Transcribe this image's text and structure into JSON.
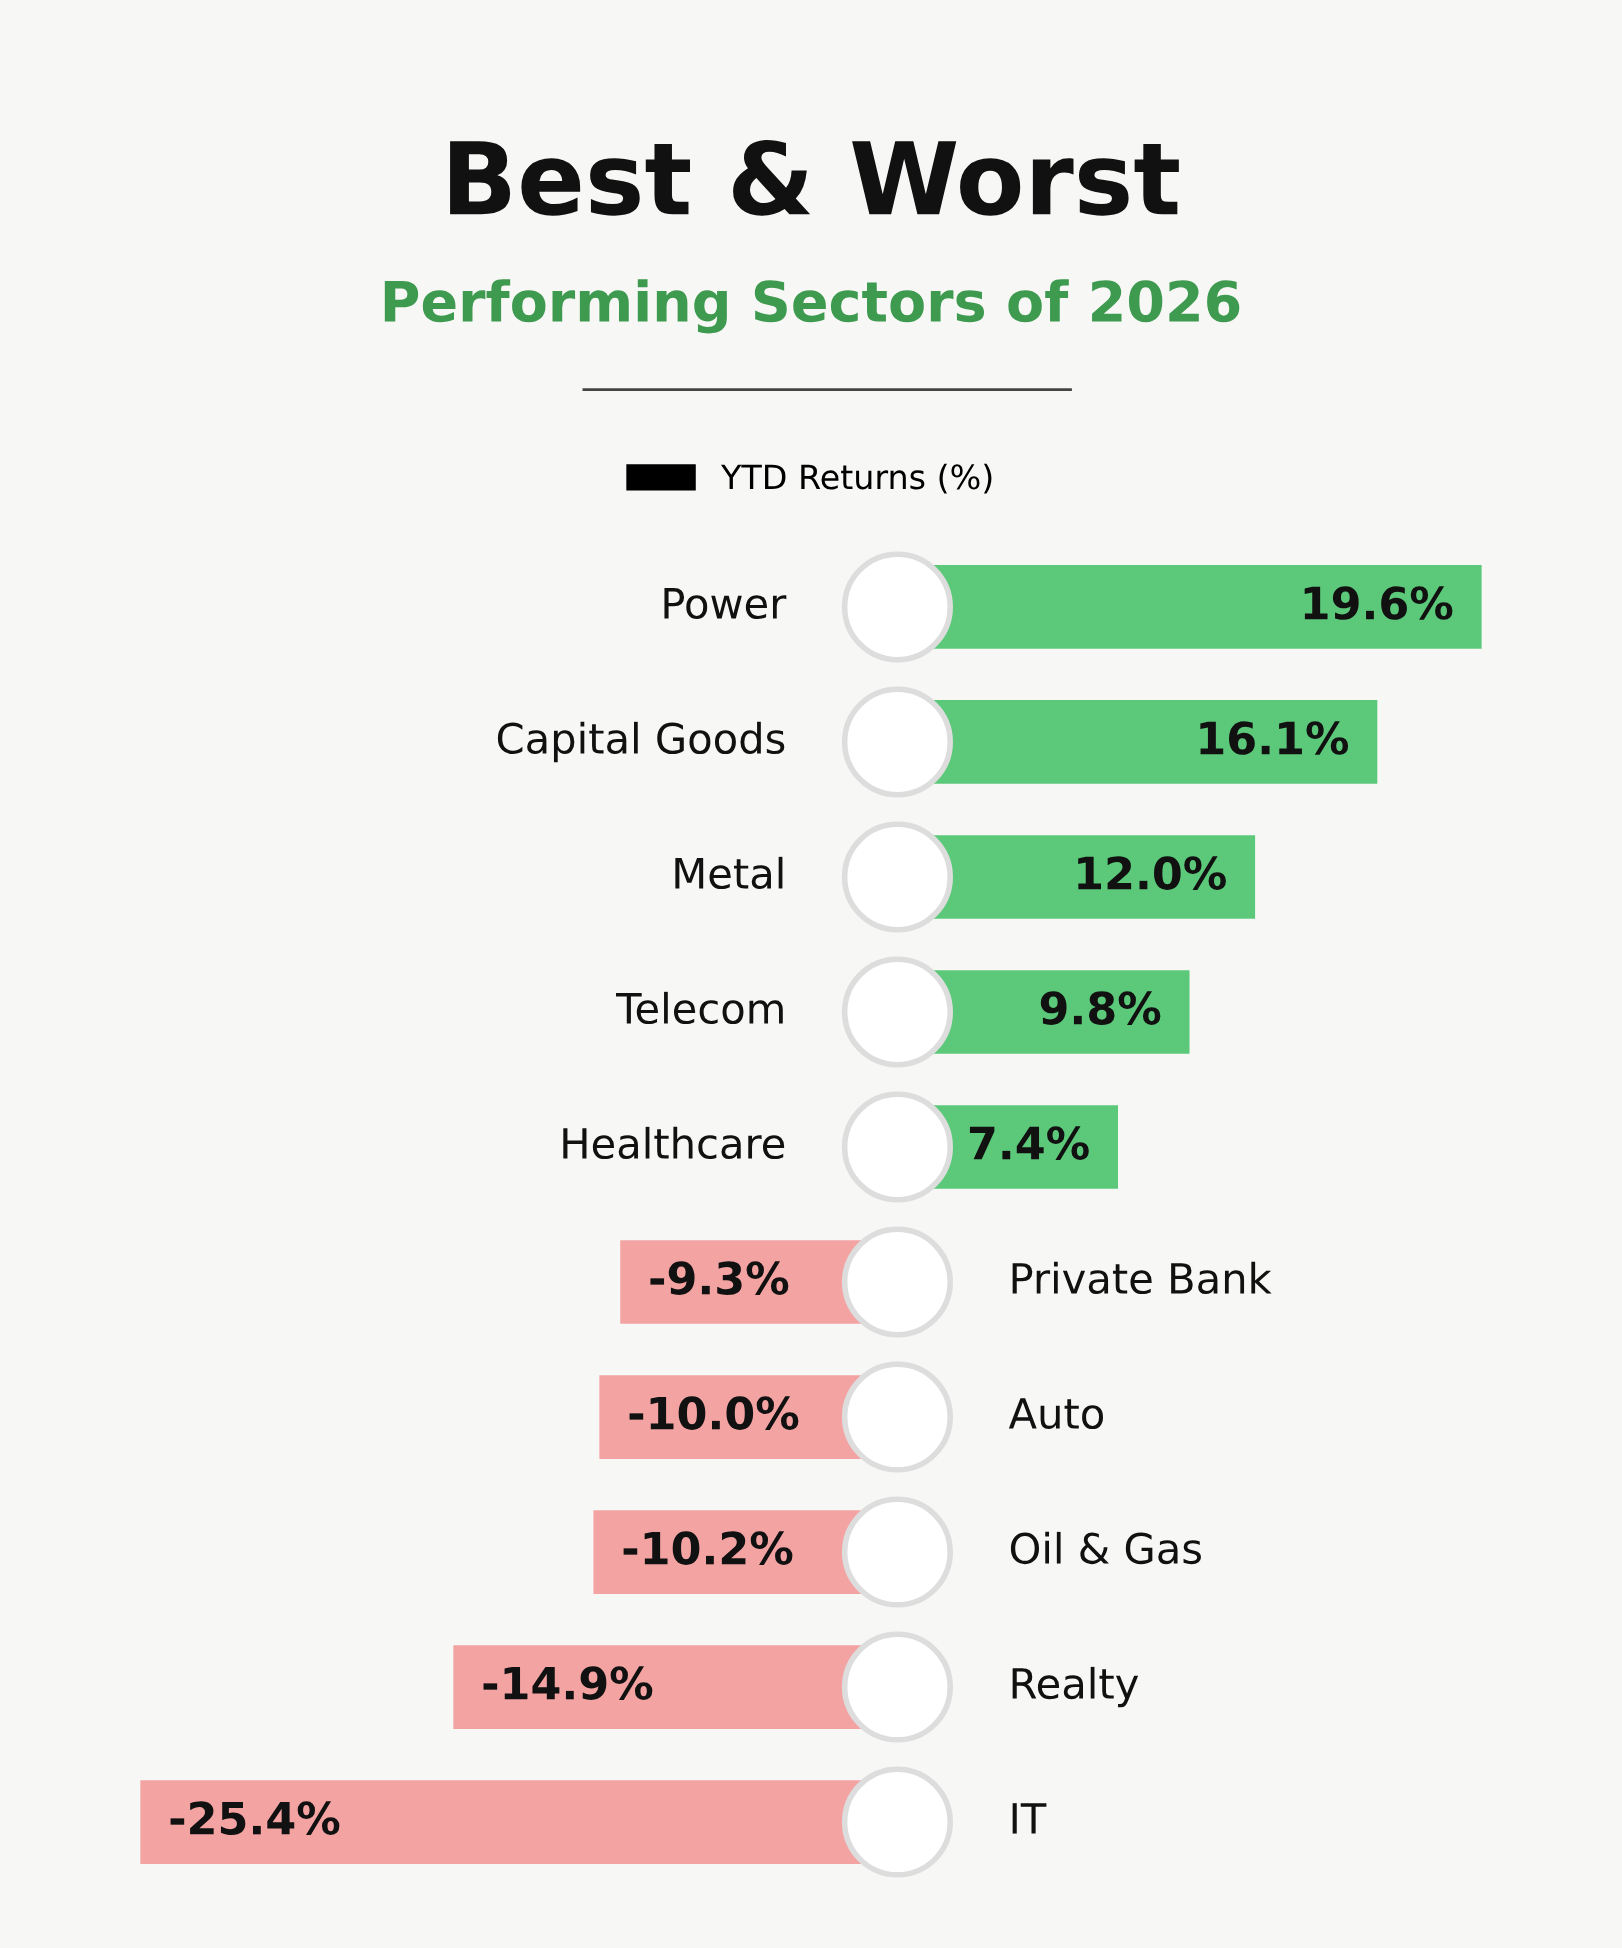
{
  "chart_data": {
    "type": "bar",
    "orientation": "horizontal",
    "title": "Best & Worst",
    "subtitle": "Performing Sectors of 2026",
    "categories": [
      "Power",
      "Capital Goods",
      "Metal",
      "Telecom",
      "Healthcare",
      "Private Bank",
      "Auto",
      "Oil & Gas",
      "Realty",
      "IT"
    ],
    "series": [
      {
        "name": "YTD Returns (%)",
        "color": "#000000",
        "values": [
          19.6,
          16.1,
          12.0,
          9.8,
          7.4,
          -9.3,
          -10.0,
          -10.2,
          -14.9,
          -25.4
        ],
        "colors": [
          "#5cc97a",
          "#5cc97a",
          "#5cc97a",
          "#5cc97a",
          "#5cc97a",
          "#f4a3a3",
          "#f4a3a3",
          "#f4a3a3",
          "#f4a3a3",
          "#f4a3a3"
        ],
        "value_labels": [
          "19.6%",
          "16.1%",
          "12.0%",
          "9.8%",
          "7.4%",
          "-9.3%",
          "-10.0%",
          "-10.2%",
          "-14.9%",
          "-25.4%"
        ]
      }
    ],
    "legend": "top"
  }
}
